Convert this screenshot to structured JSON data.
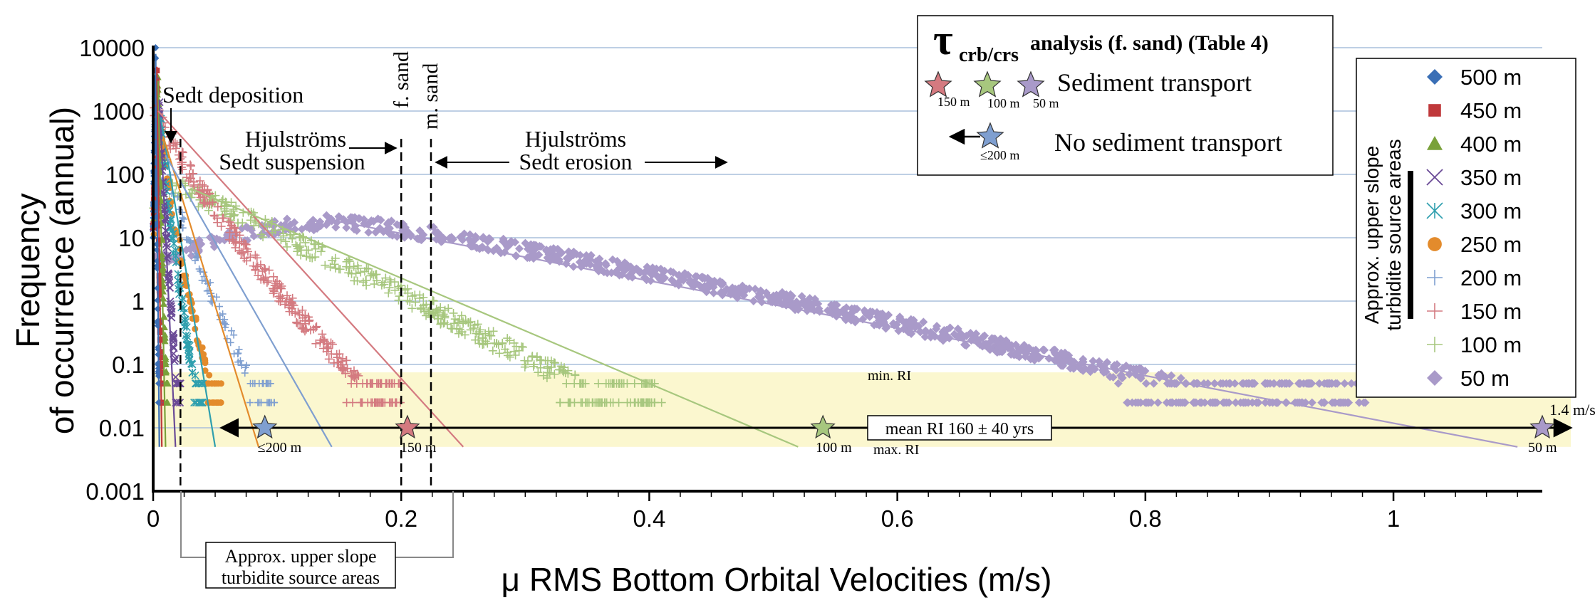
{
  "chart_data": {
    "type": "scatter",
    "xlabel": "μ RMS Bottom Orbital Velocities (m/s)",
    "ylabel_line1": "Frequency",
    "ylabel_line2": "of occurrence (annual)",
    "x_scale": "linear",
    "y_scale": "log",
    "xlim": [
      0,
      1.12
    ],
    "ylim": [
      0.001,
      10000
    ],
    "x_ticks": [
      {
        "value": 0,
        "label": "0"
      },
      {
        "value": 0.2,
        "label": "0.2"
      },
      {
        "value": 0.4,
        "label": "0.4"
      },
      {
        "value": 0.6,
        "label": "0.6"
      },
      {
        "value": 0.8,
        "label": "0.8"
      },
      {
        "value": 1.0,
        "label": "1"
      }
    ],
    "y_ticks": [
      {
        "value": 10000,
        "label": "10000"
      },
      {
        "value": 1000,
        "label": "1000"
      },
      {
        "value": 100,
        "label": "100"
      },
      {
        "value": 10,
        "label": "10"
      },
      {
        "value": 1,
        "label": "1"
      },
      {
        "value": 0.1,
        "label": "0.1"
      },
      {
        "value": 0.01,
        "label": "0.01"
      },
      {
        "value": 0.001,
        "label": "0.001"
      }
    ],
    "grid": "horizontal",
    "legend_placement": "right",
    "legend_side_label_line1": "Approx. upper slope",
    "legend_side_label_line2": "turbidite source areas",
    "series": [
      {
        "name": "500 m",
        "marker": "diamond",
        "color": "#3a6fb6",
        "curve": "hump",
        "peak": [
          0.002,
          8000
        ],
        "x_max": 0.005,
        "fit_end": [
          0.005,
          0.005
        ]
      },
      {
        "name": "450 m",
        "marker": "square",
        "color": "#c0393b",
        "curve": "hump",
        "peak": [
          0.003,
          5000
        ],
        "x_max": 0.007,
        "fit_end": [
          0.007,
          0.005
        ]
      },
      {
        "name": "400 m",
        "marker": "triangle",
        "color": "#79a13a",
        "curve": "hump",
        "peak": [
          0.004,
          3000
        ],
        "x_max": 0.012,
        "fit_end": [
          0.01,
          0.005
        ]
      },
      {
        "name": "350 m",
        "marker": "x",
        "color": "#6a4a96",
        "curve": "hump",
        "peak": [
          0.005,
          1500
        ],
        "x_max": 0.022,
        "fit_end": [
          0.018,
          0.005
        ]
      },
      {
        "name": "300 m",
        "marker": "asterisk",
        "color": "#2f9fae",
        "curve": "hump",
        "peak": [
          0.006,
          800
        ],
        "x_max": 0.04,
        "fit_end": [
          0.05,
          0.005
        ]
      },
      {
        "name": "250 m",
        "marker": "circle",
        "color": "#e38b2c",
        "curve": "hump",
        "peak": [
          0.008,
          400
        ],
        "x_max": 0.055,
        "fit_end": [
          0.085,
          0.005
        ]
      },
      {
        "name": "200 m",
        "marker": "plus",
        "color": "#7f9fd0",
        "curve": "hump",
        "peak": [
          0.01,
          200
        ],
        "x_max": 0.1,
        "fit_end": [
          0.144,
          0.005
        ]
      },
      {
        "name": "150 m",
        "marker": "plus",
        "color": "#d47a80",
        "curve": "decay",
        "peak": [
          0.004,
          1000
        ],
        "x_max": 0.2,
        "fit_end": [
          0.25,
          0.005
        ]
      },
      {
        "name": "100 m",
        "marker": "plus",
        "color": "#a7c77e",
        "curve": "plateau",
        "peak": [
          0.02,
          60
        ],
        "x_max": 0.41,
        "fit_end": [
          0.52,
          0.005
        ]
      },
      {
        "name": "50 m",
        "marker": "diamond",
        "color": "#a99ac9",
        "curve": "wave",
        "peak": [
          0.15,
          18
        ],
        "x_max": 0.98,
        "fit_end": [
          1.1,
          0.005
        ]
      }
    ],
    "annotations": {
      "band_y_range": [
        0.005,
        0.075
      ],
      "mean_ri": {
        "y": 0.01,
        "label": "mean RI 160 ± 40 yrs",
        "arrow_from_x": 1.12,
        "arrow_to_x": 0.055
      },
      "min_ri": {
        "label": "min. RI"
      },
      "max_ri": {
        "label": "max. RI"
      },
      "vlines": [
        {
          "x": 0.022,
          "style": "dashed"
        },
        {
          "x": 0.2,
          "label": "f. sand",
          "style": "dashed"
        },
        {
          "x": 0.224,
          "label": "m. sand",
          "style": "dashed"
        }
      ],
      "sedt_deposition": "Sedt deposition",
      "hjulstroms_1": "Hjulströms",
      "sedt_suspension": "Sedt suspension",
      "hjulstroms_2": "Hjulströms",
      "sedt_erosion": "Sedt erosion",
      "source_areas_line1": "Approx. upper slope",
      "source_areas_line2": "turbidite source areas",
      "stars": [
        {
          "x": 0.09,
          "y": 0.01,
          "color": "#7f9fd0",
          "label": "≤200 m"
        },
        {
          "x": 0.205,
          "y": 0.01,
          "color": "#d47a80",
          "label": "150 m"
        },
        {
          "x": 0.54,
          "y": 0.01,
          "color": "#a7c77e",
          "label": "100 m"
        },
        {
          "x": 1.12,
          "y": 0.01,
          "color": "#a99ac9",
          "label": "50 m",
          "note": "1.4 m/s"
        }
      ]
    },
    "tau_box": {
      "title_symbol": "τ",
      "title_subscript": "crb/crs",
      "title_rest": "analysis (f. sand) (Table 4)",
      "transport_label": "Sediment transport",
      "no_transport_label": "No sediment transport",
      "star_150": "150 m",
      "star_100": "100 m",
      "star_50": "50 m",
      "star_200": "≤200 m"
    }
  }
}
